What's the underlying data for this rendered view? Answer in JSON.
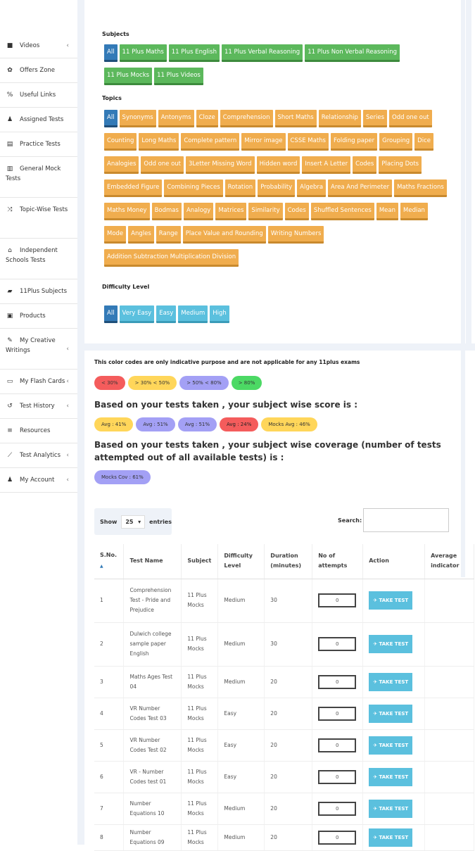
{
  "sidebar": {
    "items": [
      {
        "icon": "video-icon",
        "glyph": "■",
        "label": "Videos",
        "chevron": true
      },
      {
        "icon": "gift-icon",
        "glyph": "✿",
        "label": "Offers Zone",
        "chevron": false
      },
      {
        "icon": "link-icon",
        "glyph": "%",
        "label": "Useful Links",
        "chevron": false
      },
      {
        "icon": "user-plus-icon",
        "glyph": "♟",
        "label": "Assigned Tests",
        "chevron": false
      },
      {
        "icon": "file-icon",
        "glyph": "▤",
        "label": "Practice Tests",
        "chevron": false
      },
      {
        "icon": "copy-icon",
        "glyph": "▥",
        "label": "General Mock Tests",
        "chevron": false
      },
      {
        "icon": "shuffle-icon",
        "glyph": "⤨",
        "label": "Topic-Wise Tests",
        "chevron": false
      },
      {
        "icon": "institution-icon",
        "glyph": "⌂",
        "label": "Independent Schools Tests",
        "chevron": false
      },
      {
        "icon": "book-icon",
        "glyph": "▰",
        "label": "11Plus Subjects",
        "chevron": false
      },
      {
        "icon": "briefcase-icon",
        "glyph": "▣",
        "label": "Products",
        "chevron": false
      },
      {
        "icon": "pencil-icon",
        "glyph": "✎",
        "label": "My Creative Writings",
        "chevron": true
      },
      {
        "icon": "card-icon",
        "glyph": "▭",
        "label": "My Flash Cards",
        "chevron": true
      },
      {
        "icon": "history-icon",
        "glyph": "↺",
        "label": "Test History",
        "chevron": true
      },
      {
        "icon": "list-icon",
        "glyph": "≡",
        "label": "Resources",
        "chevron": false
      },
      {
        "icon": "chart-icon",
        "glyph": "⟋",
        "label": "Test Analytics",
        "chevron": true
      },
      {
        "icon": "user-icon",
        "glyph": "♟",
        "label": "My Account",
        "chevron": true
      }
    ]
  },
  "filters": {
    "subjects_label": "Subjects",
    "subjects": [
      "All",
      "11 Plus Maths",
      "11 Plus English",
      "11 Plus Verbal Reasoning",
      "11 Plus Non Verbal Reasoning",
      "11 Plus Mocks",
      "11 Plus Videos"
    ],
    "topics_label": "Topics",
    "topics": [
      "All",
      "Synonyms",
      "Antonyms",
      "Cloze",
      "Comprehension",
      "Short Maths",
      "Relationship",
      "Series",
      "Odd one out",
      "Counting",
      "Long Maths",
      "Complete pattern",
      "Mirror image",
      "CSSE Maths",
      "Folding paper",
      "Grouping",
      "Dice",
      "Analogies",
      "Odd one out",
      "3Letter Missing Word",
      "Hidden word",
      "Insert A Letter",
      "Codes",
      "Placing Dots",
      "Embedded Figure",
      "Combining Pieces",
      "Rotation",
      "Probability",
      "Algebra",
      "Area And Perimeter",
      "Maths Fractions",
      "Maths Money",
      "Bodmas",
      "Analogy",
      "Matrices",
      "Similarity",
      "Codes",
      "Shuffled Sentences",
      "Mean",
      "Median",
      "Mode",
      "Angles",
      "Range",
      "Place Value and Rounding",
      "Writing Numbers",
      "Addition Subtraction Multiplication Division"
    ],
    "difficulty_label": "Difficulty Level",
    "difficulty": [
      "All",
      "Very Easy",
      "Easy",
      "Medium",
      "High"
    ]
  },
  "legend": {
    "note": "This color codes are only indicative purpose and are not applicable for any 11plus exams",
    "codes": [
      {
        "label": "< 30%",
        "color": "#f45c5c"
      },
      {
        "label": "> 30% < 50%",
        "color": "#ffd65a"
      },
      {
        "label": "> 50% < 80%",
        "color": "#a3a0f5"
      },
      {
        "label": "> 80%",
        "color": "#4cd964"
      }
    ]
  },
  "score": {
    "heading": "Based on your tests taken , your subject wise score is :",
    "pills": [
      {
        "label": "Avg : 41%",
        "cls": "p-yellow"
      },
      {
        "label": "Avg : 51%",
        "cls": "p-purple"
      },
      {
        "label": "Avg : 51%",
        "cls": "p-purple"
      },
      {
        "label": "Avg : 24%",
        "cls": "p-red"
      },
      {
        "label": "Mocks Avg : 46%",
        "cls": "p-yellow"
      }
    ]
  },
  "coverage": {
    "heading": "Based on your tests taken , your subject wise coverage (number of tests attempted out of all available tests) is :",
    "pills": [
      {
        "label": "Mocks Cov : 61%",
        "cls": "p-purple"
      }
    ]
  },
  "datatable": {
    "show_label": "Show",
    "page_size": "25",
    "entries_label": "entries",
    "search_label": "Search:",
    "columns": [
      "S.No.",
      "Test Name",
      "Subject",
      "Difficulty Level",
      "Duration (minutes)",
      "No of attempts",
      "Action",
      "Average indicator"
    ],
    "take_label": "TAKE TEST",
    "rows": [
      {
        "sno": "1",
        "name": "Comprehension Test - Pride and Prejudice",
        "subject": "11 Plus Mocks",
        "difficulty": "Medium",
        "duration": "30",
        "attempts": "0"
      },
      {
        "sno": "2",
        "name": "Dulwich college sample paper English",
        "subject": "11 Plus Mocks",
        "difficulty": "Medium",
        "duration": "30",
        "attempts": "0"
      },
      {
        "sno": "3",
        "name": "Maths Ages Test 04",
        "subject": "11 Plus Mocks",
        "difficulty": "Medium",
        "duration": "20",
        "attempts": "0"
      },
      {
        "sno": "4",
        "name": "VR Number Codes Test 03",
        "subject": "11 Plus Mocks",
        "difficulty": "Easy",
        "duration": "20",
        "attempts": "0"
      },
      {
        "sno": "5",
        "name": "VR Number Codes Test 02",
        "subject": "11 Plus Mocks",
        "difficulty": "Easy",
        "duration": "20",
        "attempts": "0"
      },
      {
        "sno": "6",
        "name": "VR - Number Codes test 01",
        "subject": "11 Plus Mocks",
        "difficulty": "Easy",
        "duration": "20",
        "attempts": "0"
      },
      {
        "sno": "7",
        "name": "Number Equations 10",
        "subject": "11 Plus Mocks",
        "difficulty": "Medium",
        "duration": "20",
        "attempts": "0"
      },
      {
        "sno": "8",
        "name": "Number Equations 09",
        "subject": "11 Plus Mocks",
        "difficulty": "Medium",
        "duration": "20",
        "attempts": "0"
      }
    ]
  }
}
